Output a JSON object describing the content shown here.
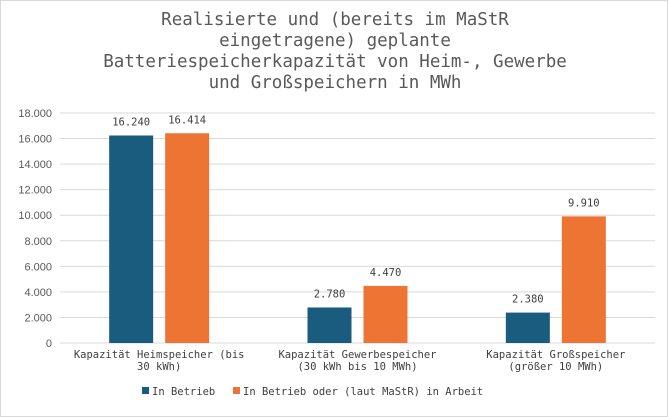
{
  "chart_data": {
    "type": "bar",
    "title": "Realisierte und (bereits im MaStR\neingetragene) geplante\nBatteriespeicherkapazität von Heim-, Gewerbe\nund Großspeichern in MWh",
    "categories": [
      [
        "Kapazität Heimspeicher (bis",
        "30 kWh)"
      ],
      [
        "Kapazität Gewerbespeicher",
        "(30 kWh bis 10 MWh)"
      ],
      [
        "Kapazität Großspeicher",
        "(größer 10 MWh)"
      ]
    ],
    "series": [
      {
        "name": "In Betrieb",
        "values": [
          16240,
          2780,
          2380
        ],
        "labels": [
          "16.240",
          "2.780",
          "2.380"
        ],
        "color": "#1a5c7e"
      },
      {
        "name": "In Betrieb oder (laut MaStR) in Arbeit",
        "values": [
          16414,
          4470,
          9910
        ],
        "labels": [
          "16.414",
          "4.470",
          "9.910"
        ],
        "color": "#ed7432"
      }
    ],
    "ylim": [
      0,
      18000
    ],
    "yticks": [
      "0",
      "2.000",
      "4.000",
      "6.000",
      "8.000",
      "10.000",
      "12.000",
      "14.000",
      "16.000",
      "18.000"
    ],
    "grid": true,
    "legend_position": "bottom",
    "gridline_color": "#d9d9d9"
  }
}
